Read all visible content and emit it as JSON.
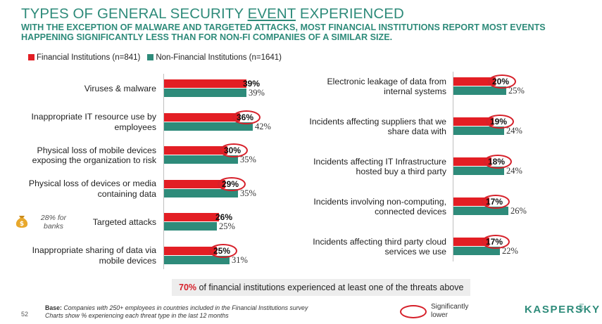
{
  "header": {
    "title_part1": "TYPES OF GENERAL SECURITY ",
    "title_event": "EVENT",
    "title_part2": " EXPERIENCED",
    "subtitle": "WITH THE EXCEPTION OF MALWARE AND TARGETED ATTACKS, MOST FINANCIAL INSTITUTIONS REPORT MOST EVENTS HAPPENING SIGNIFICANTLY LESS THAN FOR NON-FI COMPANIES OF A SIMILAR SIZE."
  },
  "colors": {
    "fi": "#e31e24",
    "nonfi": "#2e8b7a",
    "highlight": "#d6202a"
  },
  "chart_data": {
    "type": "bar",
    "orientation": "horizontal",
    "title": "TYPES OF GENERAL SECURITY EVENT EXPERIENCED",
    "unit": "%",
    "xlim": [
      0,
      100
    ],
    "legend": [
      {
        "name": "Financial Institutions (n=841)"
      },
      {
        "name": "Non-Financial Institutions (n=1641)"
      }
    ],
    "categories": [
      "Viruses & malware",
      "Inappropriate IT resource use by employees",
      "Physical loss of mobile devices exposing the organization to risk",
      "Physical loss of devices or media containing data",
      "Targeted attacks",
      "Inappropriate sharing of data via mobile devices",
      "Electronic leakage of data from internal systems",
      "Incidents affecting suppliers that we share data with",
      "Incidents affecting IT Infrastructure hosted buy a third party",
      "Incidents involving non-computing, connected devices",
      "Incidents affecting third party cloud services we use"
    ],
    "series": [
      {
        "name": "Financial Institutions (n=841)",
        "values": [
          39,
          36,
          30,
          29,
          26,
          25,
          20,
          19,
          18,
          17,
          17
        ],
        "labels": [
          "39%",
          "36%",
          "30%",
          "29%",
          "26%",
          "25%",
          "20%",
          "19%",
          "18%",
          "17%",
          "17%"
        ]
      },
      {
        "name": "Non-Financial Institutions (n=1641)",
        "values": [
          39,
          42,
          35,
          35,
          25,
          31,
          25,
          24,
          24,
          26,
          22
        ],
        "labels": [
          "39%",
          "42%",
          "35%",
          "35%",
          "25%",
          "31%",
          "25%",
          "24%",
          "24%",
          "26%",
          "22%"
        ]
      }
    ],
    "significantly_lower": [
      false,
      true,
      true,
      true,
      false,
      true,
      true,
      true,
      true,
      true,
      true
    ]
  },
  "annotations": {
    "targeted_note": "28% for banks",
    "callout_pct": "70%",
    "callout_text": " of financial institutions experienced at least one of the threats above"
  },
  "footer": {
    "base_label": "Base:",
    "base_text": " Companies with 250+ employees in countries included in the Financial Institutions survey",
    "line2": "Charts show % experiencing each threat type in the last 12 months",
    "page_number": "52",
    "sig_key": "Significantly lower",
    "logo": "KASPERSKY",
    "logo_lab": "lab"
  }
}
